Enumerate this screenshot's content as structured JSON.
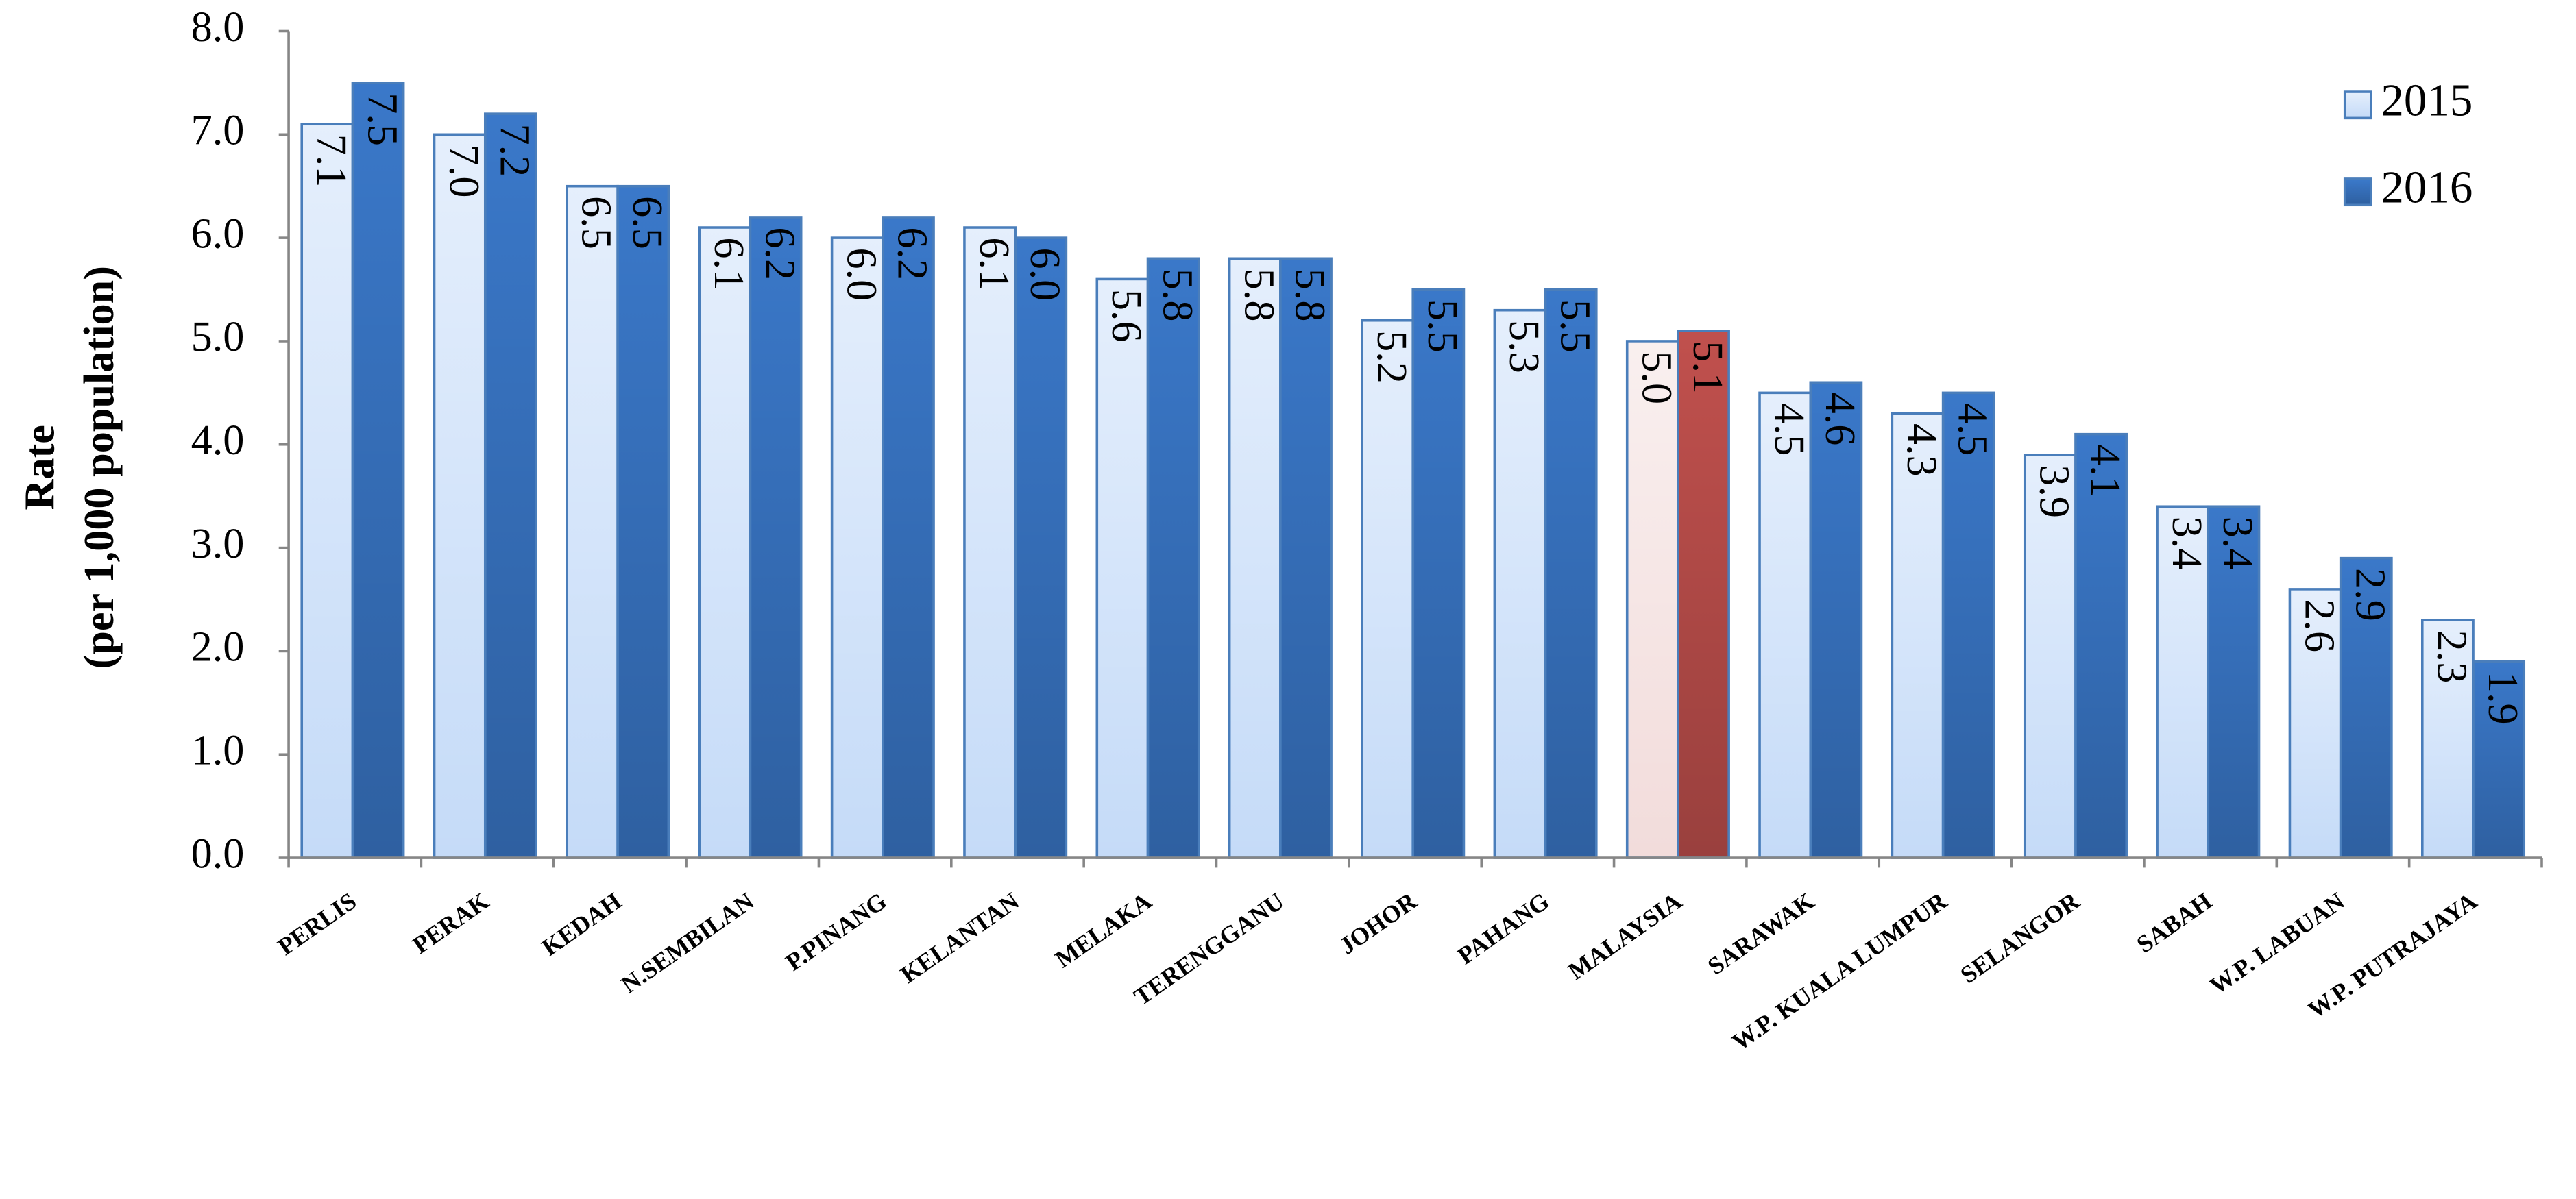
{
  "chart_data": {
    "type": "bar",
    "y_label": [
      "Rate",
      "(per 1,000 population)"
    ],
    "categories": [
      "PERLIS",
      "PERAK",
      "KEDAH",
      "N.SEMBILAN",
      "P.PINANG",
      "KELANTAN",
      "MELAKA",
      "TERENGGANU",
      "JOHOR",
      "PAHANG",
      "MALAYSIA",
      "SARAWAK",
      "W.P. KUALA LUMPUR",
      "SELANGOR",
      "SABAH",
      "W.P. LABUAN",
      "W.P. PUTRAJAYA"
    ],
    "series": [
      {
        "name": "2015",
        "color": "#c5dbf8",
        "colors": [
          "#c5dbf8",
          "#c5dbf8",
          "#c5dbf8",
          "#c5dbf8",
          "#c5dbf8",
          "#c5dbf8",
          "#c5dbf8",
          "#c5dbf8",
          "#c5dbf8",
          "#c5dbf8",
          "#f2dcdb",
          "#c5dbf8",
          "#c5dbf8",
          "#c5dbf8",
          "#c5dbf8",
          "#c5dbf8",
          "#c5dbf8"
        ],
        "values": [
          7.1,
          7.0,
          6.5,
          6.1,
          6.0,
          6.1,
          5.6,
          5.8,
          5.2,
          5.3,
          5.0,
          4.5,
          4.3,
          3.9,
          3.4,
          2.6,
          2.3
        ],
        "value_labels": [
          "7.1",
          "7.0",
          "6.5",
          "6.1",
          "6.0",
          "6.1",
          "5.6",
          "5.8",
          "5.2",
          "5.3",
          "5.0",
          "4.5",
          "4.3",
          "3.9",
          "3.4",
          "2.6",
          "2.3"
        ]
      },
      {
        "name": "2016",
        "color": "#3a78c9",
        "colors": [
          "#3a78c9",
          "#3a78c9",
          "#3a78c9",
          "#3a78c9",
          "#3a78c9",
          "#3a78c9",
          "#3a78c9",
          "#3a78c9",
          "#3a78c9",
          "#3a78c9",
          "#c0504d",
          "#3a78c9",
          "#3a78c9",
          "#3a78c9",
          "#3a78c9",
          "#3a78c9",
          "#3a78c9"
        ],
        "values": [
          7.5,
          7.2,
          6.5,
          6.2,
          6.2,
          6.0,
          5.8,
          5.8,
          5.5,
          5.5,
          5.1,
          4.6,
          4.5,
          4.1,
          3.4,
          2.9,
          1.9
        ],
        "value_labels": [
          "7.5",
          "7.2",
          "6.5",
          "6.2",
          "6.2",
          "6.0",
          "5.8",
          "5.8",
          "5.5",
          "5.5",
          "5.1",
          "4.6",
          "4.5",
          "4.1",
          "3.4",
          "2.9",
          "1.9"
        ]
      }
    ],
    "ylim": [
      0,
      8
    ],
    "yticks": [
      {
        "value": 0,
        "label": "0.0"
      },
      {
        "value": 1,
        "label": "1.0"
      },
      {
        "value": 2,
        "label": "2.0"
      },
      {
        "value": 3,
        "label": "3.0"
      },
      {
        "value": 4,
        "label": "4.0"
      },
      {
        "value": 5,
        "label": "5.0"
      },
      {
        "value": 6,
        "label": "6.0"
      },
      {
        "value": 7,
        "label": "7.0"
      },
      {
        "value": 8,
        "label": "8.0"
      }
    ],
    "legend": "top-right",
    "grid": false
  }
}
